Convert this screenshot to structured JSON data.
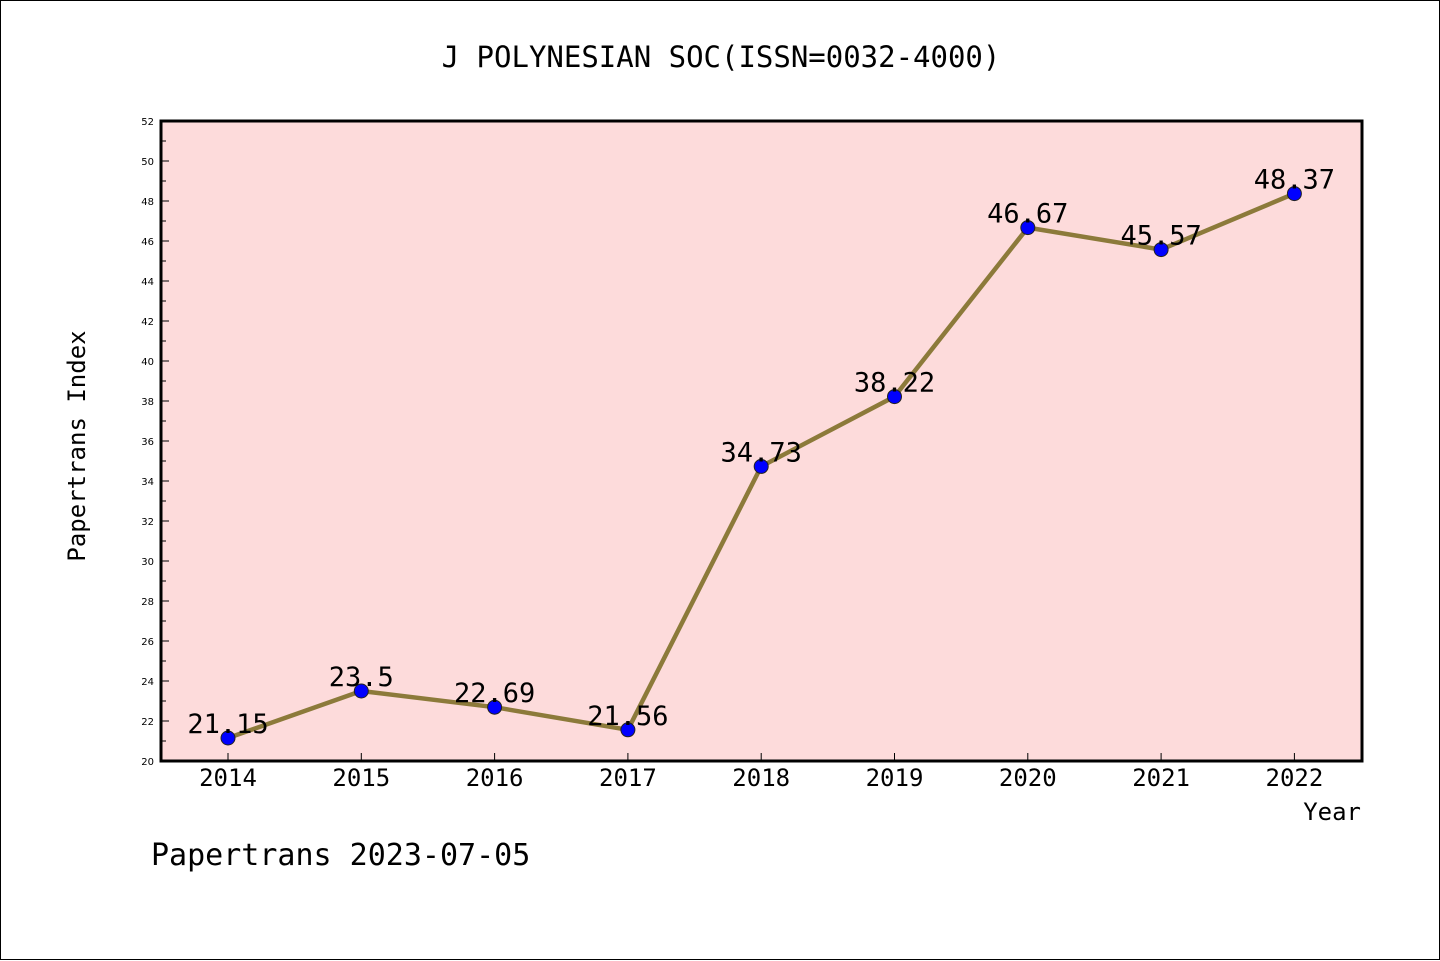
{
  "chart_data": {
    "type": "line",
    "title": "J POLYNESIAN SOC(ISSN=0032-4000)",
    "xlabel": "Year",
    "ylabel": "Papertrans Index",
    "x": [
      "2014",
      "2015",
      "2016",
      "2017",
      "2018",
      "2019",
      "2020",
      "2021",
      "2022"
    ],
    "series": [
      {
        "values": [
          21.15,
          23.5,
          22.69,
          21.56,
          34.73,
          38.22,
          46.67,
          45.57,
          48.37
        ],
        "labels": [
          "21.15",
          "23.5",
          "22.69",
          "21.56",
          "34.73",
          "38.22",
          "46.67",
          "45.57",
          "48.37"
        ],
        "line_color": "#8c7a3a",
        "marker_color": "#0000ff"
      }
    ],
    "ylim": [
      20,
      52
    ],
    "yticks": [
      "20",
      "22",
      "24",
      "26",
      "28",
      "30",
      "32",
      "34",
      "36",
      "38",
      "40",
      "42",
      "44",
      "46",
      "48",
      "50",
      "52"
    ],
    "plot_background": "#fddbdb",
    "grid": false,
    "legend": false
  },
  "footer": "Papertrans 2023-07-05"
}
